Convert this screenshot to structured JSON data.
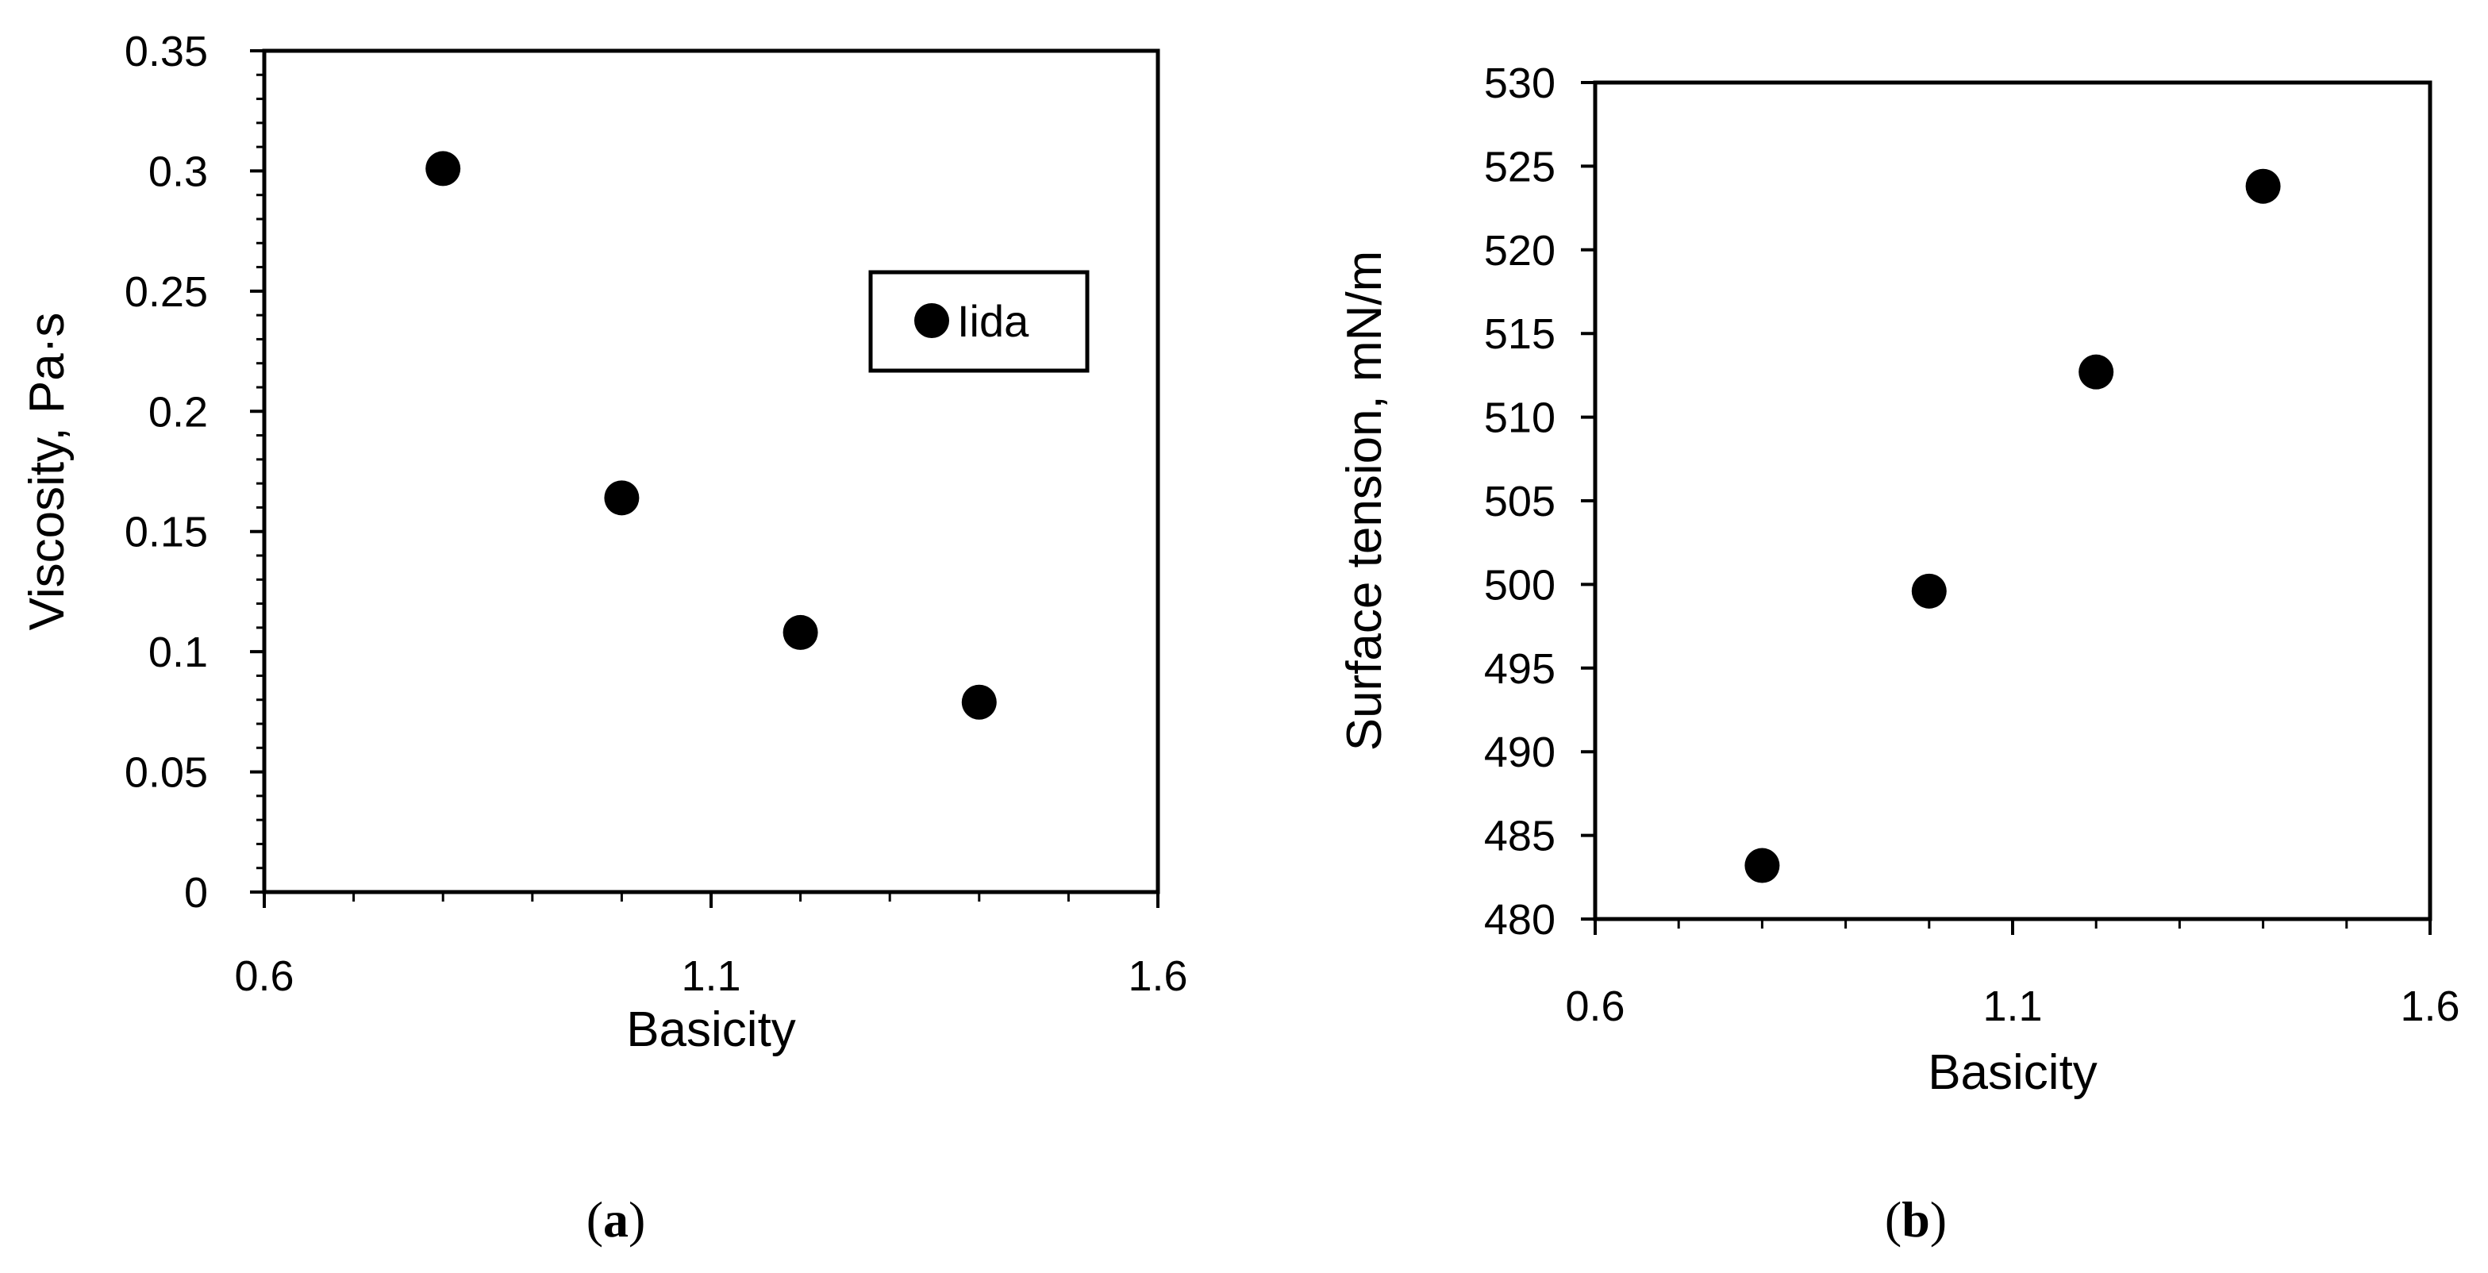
{
  "chart_data": [
    {
      "type": "scatter",
      "panel_label": "a",
      "xlabel": "Basicity",
      "ylabel": "Viscosity, Pa·s",
      "xlim": [
        0.6,
        1.6
      ],
      "ylim": [
        0,
        0.35
      ],
      "xticks": [
        "0.6",
        "1.1",
        "1.6"
      ],
      "yticks": [
        "0",
        "0.05",
        "0.1",
        "0.15",
        "0.2",
        "0.25",
        "0.3",
        "0.35"
      ],
      "legend": {
        "placement": "right",
        "entries": [
          "Iida"
        ]
      },
      "series": [
        {
          "name": "Iida",
          "x": [
            0.8,
            1.0,
            1.2,
            1.4
          ],
          "y": [
            0.301,
            0.164,
            0.108,
            0.079
          ]
        }
      ]
    },
    {
      "type": "scatter",
      "panel_label": "b",
      "xlabel": "Basicity",
      "ylabel": "Surface tension, mN/m",
      "xlim": [
        0.6,
        1.6
      ],
      "ylim": [
        480,
        530
      ],
      "xticks": [
        "0.6",
        "1.1",
        "1.6"
      ],
      "yticks": [
        "480",
        "485",
        "490",
        "495",
        "500",
        "505",
        "510",
        "515",
        "520",
        "525",
        "530"
      ],
      "series": [
        {
          "name": "Iida",
          "x": [
            0.8,
            1.0,
            1.2,
            1.4
          ],
          "y": [
            483.2,
            499.6,
            512.7,
            523.8
          ]
        }
      ]
    }
  ]
}
